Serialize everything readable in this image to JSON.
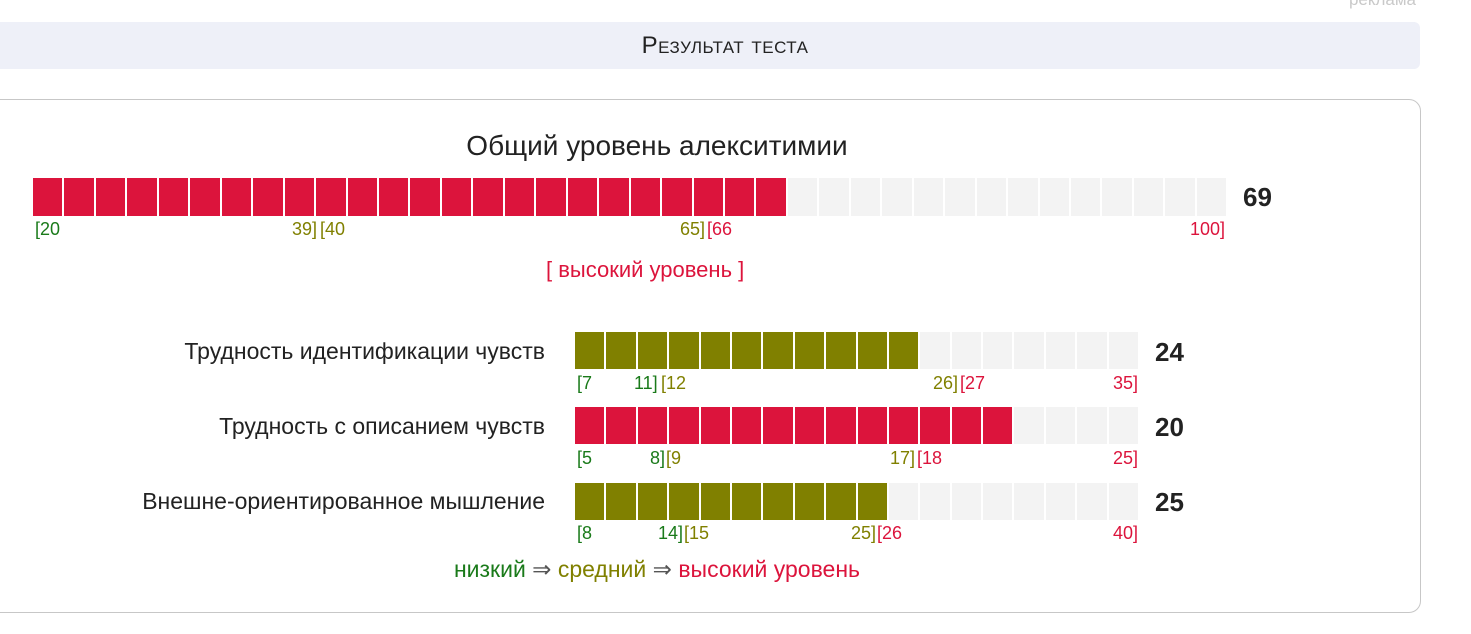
{
  "ad_label": "реклама",
  "header": {
    "title": "Результат теста"
  },
  "colors": {
    "low": "#1a7a1a",
    "mid": "#808000",
    "high": "#dc143c",
    "empty": "#f3f3f3"
  },
  "overall": {
    "title": "Общий уровень алекситимии",
    "score": "69",
    "min": 20,
    "max": 100,
    "value": 69,
    "segments_total": 38,
    "segments_filled": 24,
    "fill_level": "high",
    "ticks": [
      {
        "text": "[20",
        "level": "low"
      },
      {
        "text": "39]",
        "level": "mid"
      },
      {
        "text": "[40",
        "level": "mid"
      },
      {
        "text": "65]",
        "level": "mid"
      },
      {
        "text": "[66",
        "level": "high"
      },
      {
        "text": "100]",
        "level": "high"
      }
    ],
    "verdict": "[ высокий уровень ]"
  },
  "scales": [
    {
      "label": "Трудность идентификации чувств",
      "score": "24",
      "segments_total": 18,
      "segments_filled": 11,
      "fill_level": "mid",
      "ticks": [
        {
          "text": "[7",
          "level": "low"
        },
        {
          "text": "11]",
          "level": "low"
        },
        {
          "text": "[12",
          "level": "mid"
        },
        {
          "text": "26]",
          "level": "mid"
        },
        {
          "text": "[27",
          "level": "high"
        },
        {
          "text": "35]",
          "level": "high"
        }
      ]
    },
    {
      "label": "Трудность с описанием чувств",
      "score": "20",
      "segments_total": 18,
      "segments_filled": 14,
      "fill_level": "high",
      "ticks": [
        {
          "text": "[5",
          "level": "low"
        },
        {
          "text": "8]",
          "level": "low"
        },
        {
          "text": "[9",
          "level": "mid"
        },
        {
          "text": "17]",
          "level": "mid"
        },
        {
          "text": "[18",
          "level": "high"
        },
        {
          "text": "25]",
          "level": "high"
        }
      ]
    },
    {
      "label": "Внешне-ориентированное мышление",
      "score": "25",
      "segments_total": 18,
      "segments_filled": 10,
      "fill_level": "mid",
      "ticks": [
        {
          "text": "[8",
          "level": "low"
        },
        {
          "text": "14]",
          "level": "low"
        },
        {
          "text": "[15",
          "level": "mid"
        },
        {
          "text": "25]",
          "level": "mid"
        },
        {
          "text": "[26",
          "level": "high"
        },
        {
          "text": "40]",
          "level": "high"
        }
      ]
    }
  ],
  "legend": {
    "low": "низкий",
    "arrow1": " ⇒ ",
    "mid": "средний",
    "arrow2": " ⇒ ",
    "high": "высокий уровень"
  }
}
